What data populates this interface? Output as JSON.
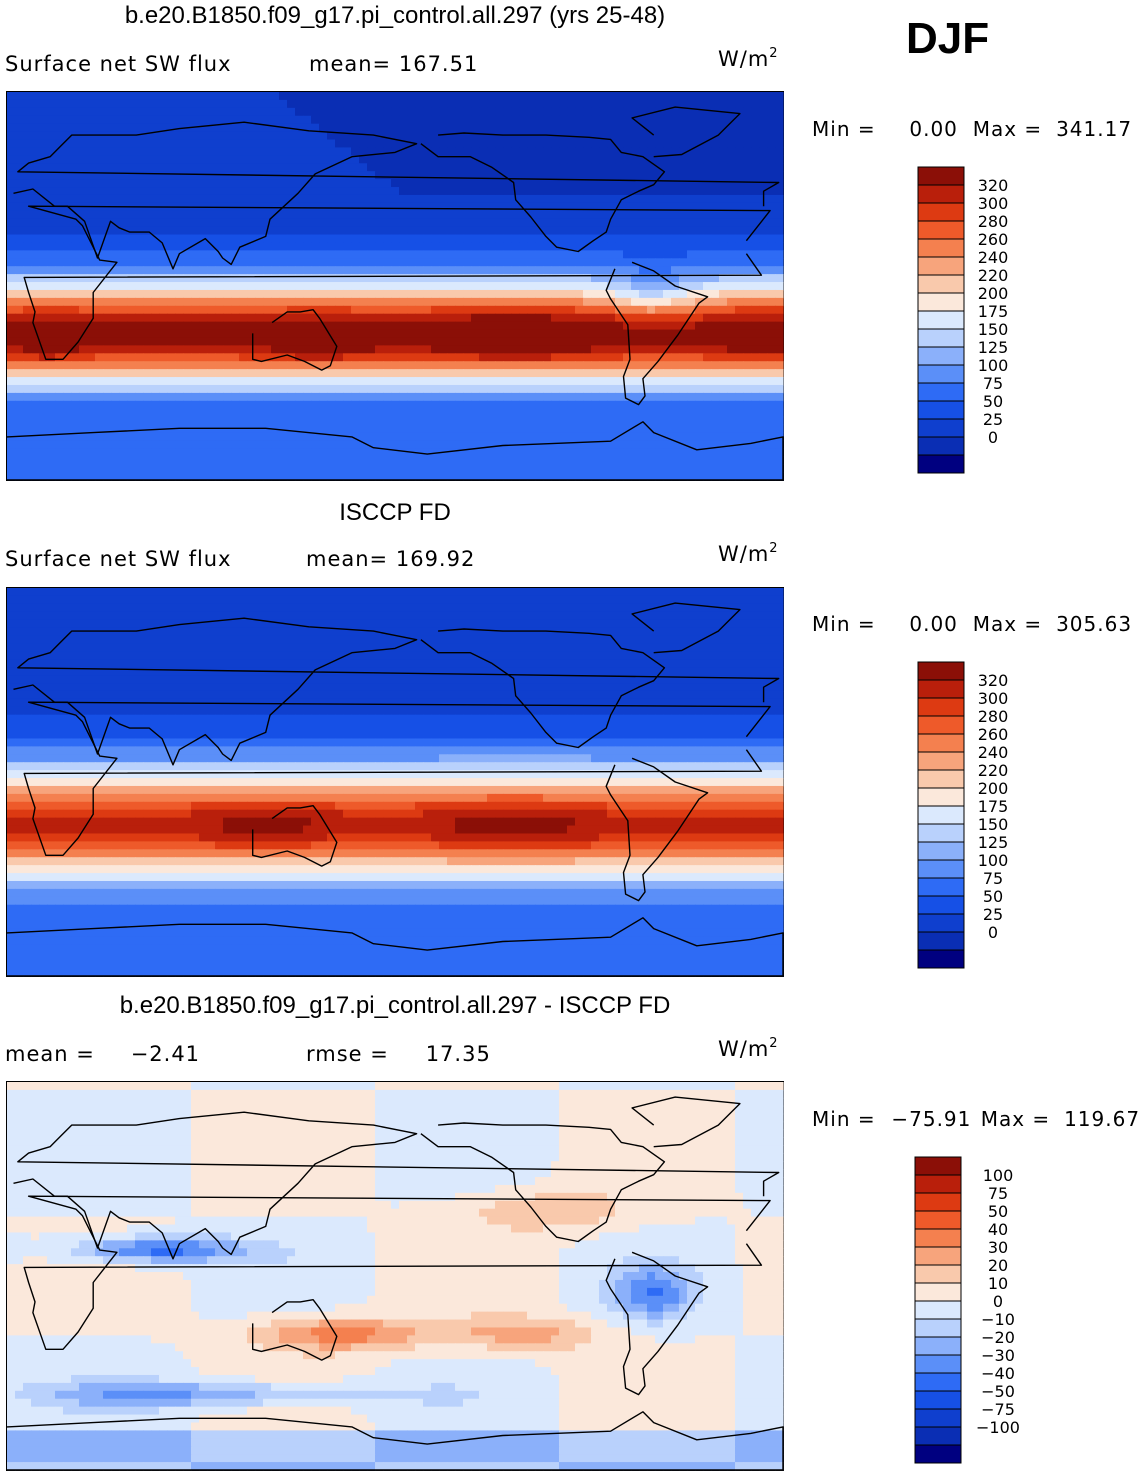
{
  "season": "DJF",
  "colors": {
    "levels_model": [
      "#000080",
      "#0a2eb4",
      "#0f3fce",
      "#1650e6",
      "#2e6bf5",
      "#5b8ff8",
      "#8bb0fa",
      "#b9d1fc",
      "#dbe9fd",
      "#fbe8db",
      "#f9c9ac",
      "#f7a47c",
      "#f4804f",
      "#ee5a2a",
      "#dd3a12",
      "#b91f0b",
      "#8b0f07"
    ],
    "levels_diff": [
      "#000080",
      "#0a2eb4",
      "#0f3fce",
      "#1650e6",
      "#2e6bf5",
      "#5b8ff8",
      "#8bb0fa",
      "#b9d1fc",
      "#dbe9fd",
      "#fbe8db",
      "#f9c9ac",
      "#f7a47c",
      "#f4804f",
      "#ee5a2a",
      "#dd3a12",
      "#b91f0b",
      "#8b0f07"
    ]
  },
  "chart_data": [
    {
      "type": "heatmap",
      "title": "b.e20.B1850.f09_g17.pi_control.all.297 (yrs 25-48)",
      "variable": "Surface net SW flux",
      "stat_label": "mean=",
      "stat_value": "167.51",
      "units": "W/m",
      "units_exp": "2",
      "min_label": "Min =",
      "min_value": "0.00",
      "max_label": "Max =",
      "max_value": "341.17",
      "colorbar_ticks": [
        "320",
        "300",
        "280",
        "260",
        "240",
        "220",
        "200",
        "175",
        "150",
        "125",
        "100",
        "75",
        "50",
        "25",
        "0"
      ]
    },
    {
      "type": "heatmap",
      "title": "ISCCP FD",
      "variable": "Surface net SW flux",
      "stat_label": "mean=",
      "stat_value": "169.92",
      "units": "W/m",
      "units_exp": "2",
      "min_label": "Min =",
      "min_value": "0.00",
      "max_label": "Max =",
      "max_value": "305.63",
      "colorbar_ticks": [
        "320",
        "300",
        "280",
        "260",
        "240",
        "220",
        "200",
        "175",
        "150",
        "125",
        "100",
        "75",
        "50",
        "25",
        "0"
      ]
    },
    {
      "type": "heatmap",
      "title": "b.e20.B1850.f09_g17.pi_control.all.297 - ISCCP FD",
      "stat_label": "mean =",
      "stat_value": "−2.41",
      "rmse_label": "rmse =",
      "rmse_value": "17.35",
      "units": "W/m",
      "units_exp": "2",
      "min_label": "Min =",
      "min_value": "−75.91",
      "max_label": "Max =",
      "max_value": "119.67",
      "colorbar_ticks": [
        "100",
        "75",
        "50",
        "40",
        "30",
        "20",
        "10",
        "0",
        "−10",
        "−20",
        "−30",
        "−40",
        "−50",
        "−75",
        "−100"
      ]
    }
  ]
}
